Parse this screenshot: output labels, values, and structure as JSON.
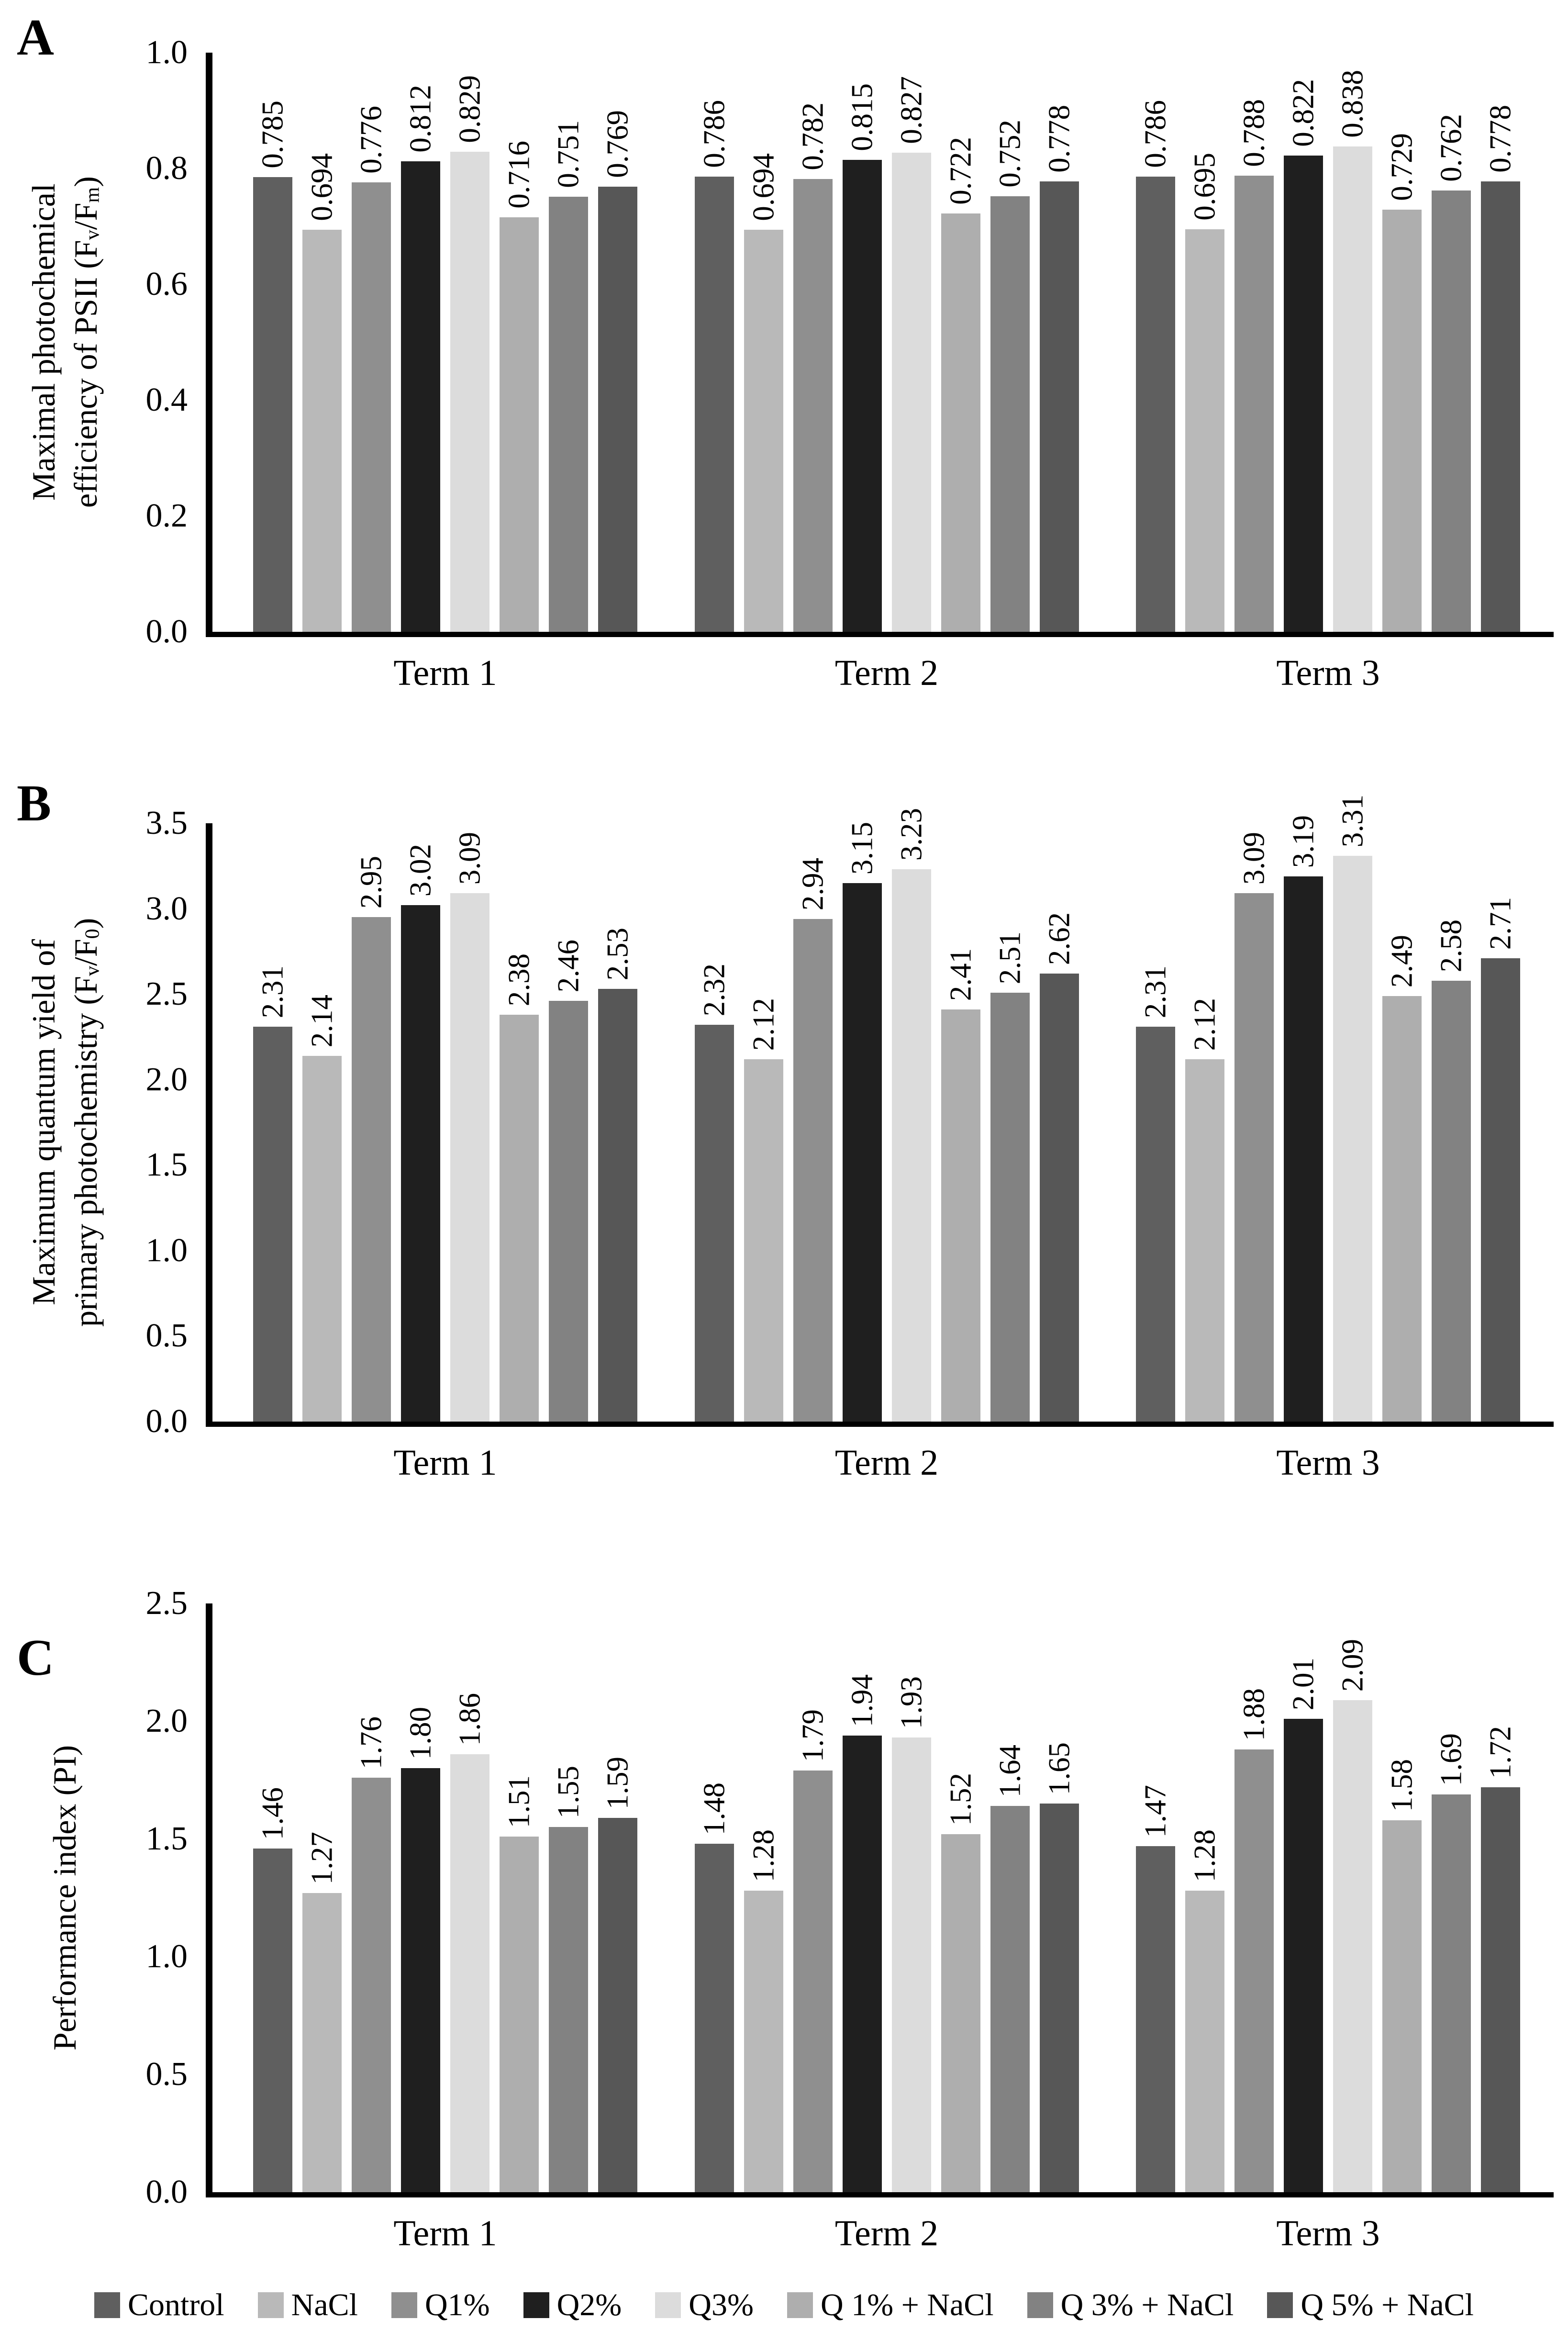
{
  "figure": {
    "background": "#ffffff",
    "text_color": "#000000",
    "axis_color": "#000000"
  },
  "legend": {
    "position": "bottom-center",
    "items": [
      {
        "label": "Control",
        "color": "#5f5f5f"
      },
      {
        "label": "NaCl",
        "color": "#b9b9b9"
      },
      {
        "label": "Q1%",
        "color": "#8f8f8f"
      },
      {
        "label": "Q2%",
        "color": "#1f1f1f"
      },
      {
        "label": "Q3%",
        "color": "#dcdcdc"
      },
      {
        "label": "Q 1% + NaCl",
        "color": "#aeaeae"
      },
      {
        "label": "Q 3% + NaCl",
        "color": "#828282"
      },
      {
        "label": "Q 5% + NaCl",
        "color": "#575757"
      }
    ]
  },
  "chart_data": [
    {
      "panel": "A",
      "type": "bar",
      "title": "",
      "xlabel": "",
      "ylabel_lines": [
        [
          {
            "t": "Maximal photochemical"
          }
        ],
        [
          {
            "t": "efficiency of PSII (F"
          },
          {
            "t": "v",
            "sub": true
          },
          {
            "t": "/F"
          },
          {
            "t": "m",
            "sub": true
          },
          {
            "t": ")"
          }
        ]
      ],
      "categories": [
        "Term 1",
        "Term 2",
        "Term 3"
      ],
      "series": [
        {
          "name": "Control",
          "values": [
            0.785,
            0.786,
            0.786
          ]
        },
        {
          "name": "NaCl",
          "values": [
            0.694,
            0.694,
            0.695
          ]
        },
        {
          "name": "Q1%",
          "values": [
            0.776,
            0.782,
            0.788
          ]
        },
        {
          "name": "Q2%",
          "values": [
            0.812,
            0.815,
            0.822
          ]
        },
        {
          "name": "Q3%",
          "values": [
            0.829,
            0.827,
            0.838
          ]
        },
        {
          "name": "Q 1% + NaCl",
          "values": [
            0.716,
            0.722,
            0.729
          ]
        },
        {
          "name": "Q 3% + NaCl",
          "values": [
            0.751,
            0.752,
            0.762
          ]
        },
        {
          "name": "Q 5% + NaCl",
          "values": [
            0.769,
            0.778,
            0.778
          ]
        }
      ],
      "ylim": [
        0.0,
        1.0
      ],
      "yticks": [
        "1.0",
        "0.8",
        "0.6",
        "0.4",
        "0.2",
        "0.0"
      ],
      "value_label_decimals": 3,
      "grid": false,
      "value_labels_rotated": true
    },
    {
      "panel": "B",
      "type": "bar",
      "title": "",
      "xlabel": "",
      "ylabel_lines": [
        [
          {
            "t": "Maximum quantum yield of"
          }
        ],
        [
          {
            "t": "primary photochemistry (F"
          },
          {
            "t": "v",
            "sub": true
          },
          {
            "t": "/F"
          },
          {
            "t": "0",
            "sub": true
          },
          {
            "t": ")"
          }
        ]
      ],
      "categories": [
        "Term 1",
        "Term 2",
        "Term 3"
      ],
      "series": [
        {
          "name": "Control",
          "values": [
            2.31,
            2.32,
            2.31
          ]
        },
        {
          "name": "NaCl",
          "values": [
            2.14,
            2.12,
            2.12
          ]
        },
        {
          "name": "Q1%",
          "values": [
            2.95,
            2.94,
            3.09
          ]
        },
        {
          "name": "Q2%",
          "values": [
            3.02,
            3.15,
            3.19
          ]
        },
        {
          "name": "Q3%",
          "values": [
            3.09,
            3.23,
            3.31
          ]
        },
        {
          "name": "Q 1% + NaCl",
          "values": [
            2.38,
            2.41,
            2.49
          ]
        },
        {
          "name": "Q 3% + NaCl",
          "values": [
            2.46,
            2.51,
            2.58
          ]
        },
        {
          "name": "Q 5% + NaCl",
          "values": [
            2.53,
            2.62,
            2.71
          ]
        }
      ],
      "ylim": [
        0.0,
        3.5
      ],
      "yticks": [
        "3.5",
        "3.0",
        "2.5",
        "2.0",
        "1.5",
        "1.0",
        "0.5",
        "0.0"
      ],
      "value_label_decimals": 2,
      "grid": false,
      "value_labels_rotated": true
    },
    {
      "panel": "C",
      "type": "bar",
      "title": "",
      "xlabel": "",
      "ylabel_lines": [
        [
          {
            "t": "Performance index (PI)"
          }
        ]
      ],
      "categories": [
        "Term 1",
        "Term 2",
        "Term 3"
      ],
      "series": [
        {
          "name": "Control",
          "values": [
            1.46,
            1.48,
            1.47
          ]
        },
        {
          "name": "NaCl",
          "values": [
            1.27,
            1.28,
            1.28
          ]
        },
        {
          "name": "Q1%",
          "values": [
            1.76,
            1.79,
            1.88
          ]
        },
        {
          "name": "Q2%",
          "values": [
            1.8,
            1.94,
            2.01
          ]
        },
        {
          "name": "Q3%",
          "values": [
            1.86,
            1.93,
            2.09
          ]
        },
        {
          "name": "Q 1% + NaCl",
          "values": [
            1.51,
            1.52,
            1.58
          ]
        },
        {
          "name": "Q 3% + NaCl",
          "values": [
            1.55,
            1.64,
            1.69
          ]
        },
        {
          "name": "Q 5% + NaCl",
          "values": [
            1.59,
            1.65,
            1.72
          ]
        }
      ],
      "ylim": [
        0.0,
        2.5
      ],
      "yticks": [
        "2.5",
        "2.0",
        "1.5",
        "1.0",
        "0.5",
        "0.0"
      ],
      "value_label_decimals": 2,
      "grid": false,
      "value_labels_rotated": true
    }
  ]
}
